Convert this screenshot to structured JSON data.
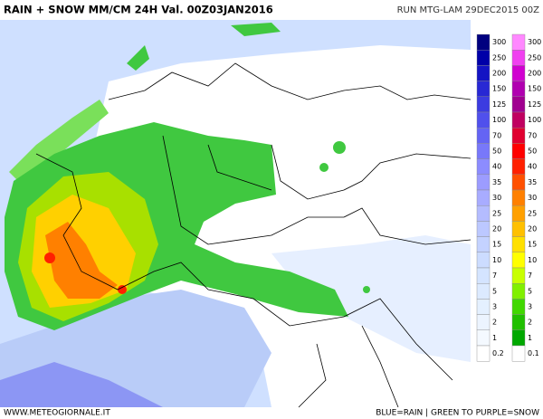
{
  "header": {
    "title": "RAIN + SNOW MM/CM 24H Val. 00Z03JAN2016",
    "run": "RUN MTG-LAM 29DEC2015 00Z"
  },
  "footer": {
    "site": "WWW.METEOGIORNALE.IT",
    "legend_note": "BLUE=RAIN | GREEN TO PURPLE=SNOW"
  },
  "legend": {
    "rain": [
      {
        "label": 300,
        "color": "#00007f"
      },
      {
        "label": 250,
        "color": "#0000a8"
      },
      {
        "label": 200,
        "color": "#1414c4"
      },
      {
        "label": 150,
        "color": "#2828d4"
      },
      {
        "label": 125,
        "color": "#3c3ce0"
      },
      {
        "label": 100,
        "color": "#5050ec"
      },
      {
        "label": 70,
        "color": "#6464f4"
      },
      {
        "label": 50,
        "color": "#7878fa"
      },
      {
        "label": 40,
        "color": "#8c8cff"
      },
      {
        "label": 35,
        "color": "#9c9cff"
      },
      {
        "label": 30,
        "color": "#a8acff"
      },
      {
        "label": 25,
        "color": "#b4bcff"
      },
      {
        "label": 20,
        "color": "#bcc8ff"
      },
      {
        "label": 15,
        "color": "#c4d2ff"
      },
      {
        "label": 10,
        "color": "#ccdcff"
      },
      {
        "label": 7,
        "color": "#d4e4ff"
      },
      {
        "label": 5,
        "color": "#dceaff"
      },
      {
        "label": 3,
        "color": "#e4f0ff"
      },
      {
        "label": 2,
        "color": "#ecf4ff"
      },
      {
        "label": 1,
        "color": "#f4f9ff"
      },
      {
        "label": 0.2,
        "color": "#ffffff"
      }
    ],
    "snow": [
      {
        "label": 300,
        "color": "#ff88ff"
      },
      {
        "label": 250,
        "color": "#f040f0"
      },
      {
        "label": 200,
        "color": "#d000d0"
      },
      {
        "label": 150,
        "color": "#b000b0"
      },
      {
        "label": 125,
        "color": "#a00090"
      },
      {
        "label": 100,
        "color": "#c00060"
      },
      {
        "label": 70,
        "color": "#e00030"
      },
      {
        "label": 50,
        "color": "#ff0000"
      },
      {
        "label": 40,
        "color": "#ff2000"
      },
      {
        "label": 35,
        "color": "#ff5000"
      },
      {
        "label": 30,
        "color": "#ff8000"
      },
      {
        "label": 25,
        "color": "#ffa000"
      },
      {
        "label": 20,
        "color": "#ffc000"
      },
      {
        "label": 15,
        "color": "#ffe000"
      },
      {
        "label": 10,
        "color": "#ffff00"
      },
      {
        "label": 7,
        "color": "#c8ff00"
      },
      {
        "label": 5,
        "color": "#80f000"
      },
      {
        "label": 3,
        "color": "#40d800"
      },
      {
        "label": 2,
        "color": "#20c000"
      },
      {
        "label": 1,
        "color": "#00a800"
      },
      {
        "label": 0.1,
        "color": "#ffffff"
      }
    ]
  }
}
